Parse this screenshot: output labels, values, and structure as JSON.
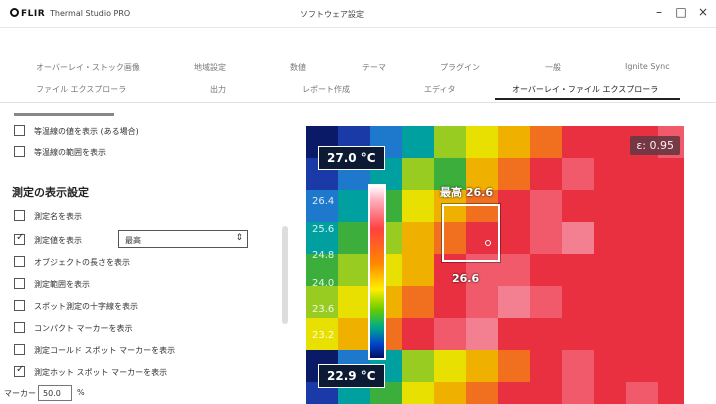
{
  "titlebar": {
    "logo": "FLIR",
    "app_name": "Thermal Studio PRO",
    "window_title": "ソフトウェア設定",
    "minimize": "–",
    "maximize": "□",
    "close": "×"
  },
  "tabs": {
    "row1": [
      "オーバーレイ・ストック画像",
      "地域設定",
      "数値",
      "テーマ",
      "プラグイン",
      "一般",
      "Ignite Sync"
    ],
    "row2": [
      "ファイル エクスプローラ",
      "出力",
      "レポート作成",
      "エディタ",
      "オーバーレイ・ファイル エクスプローラ"
    ],
    "active": "オーバーレイ・ファイル エクスプローラ"
  },
  "left_panel": {
    "top_options": [
      {
        "label": "等温線の値を表示 (ある場合)",
        "checked": false
      },
      {
        "label": "等温線の範囲を表示",
        "checked": false
      }
    ],
    "section_title": "測定の表示設定",
    "options": [
      {
        "label": "測定名を表示",
        "checked": false
      },
      {
        "label": "測定値を表示",
        "checked": true
      },
      {
        "label": "オブジェクトの長さを表示",
        "checked": false
      },
      {
        "label": "測定範囲を表示",
        "checked": false
      },
      {
        "label": "スポット測定の十字線を表示",
        "checked": false
      },
      {
        "label": "コンパクト マーカーを表示",
        "checked": false
      },
      {
        "label": "測定コールド スポット マーカーを表示",
        "checked": false
      },
      {
        "label": "測定ホット スポット マーカーを表示",
        "checked": true
      }
    ],
    "value_select": "最高",
    "marker_size_label": "マーカー サイズ",
    "marker_size_value": "50.0",
    "marker_size_unit": "%"
  },
  "thermal": {
    "max_temp": "27.0 °C",
    "min_temp": "22.9 °C",
    "emissivity": "ε: 0.95",
    "roi_label": "最高 26.6",
    "spot_label": "26.6",
    "scale_ticks": [
      "26.4",
      "25.6",
      "24.8",
      "24.0",
      "23.6",
      "23.2"
    ]
  },
  "colors": {
    "palette": [
      "#0a1a66",
      "#1a3aa8",
      "#1e78cc",
      "#00a0a0",
      "#3cae3c",
      "#98cc20",
      "#e8e000",
      "#f0b000",
      "#f07020",
      "#e83040",
      "#f05a6a",
      "#f28090"
    ]
  }
}
